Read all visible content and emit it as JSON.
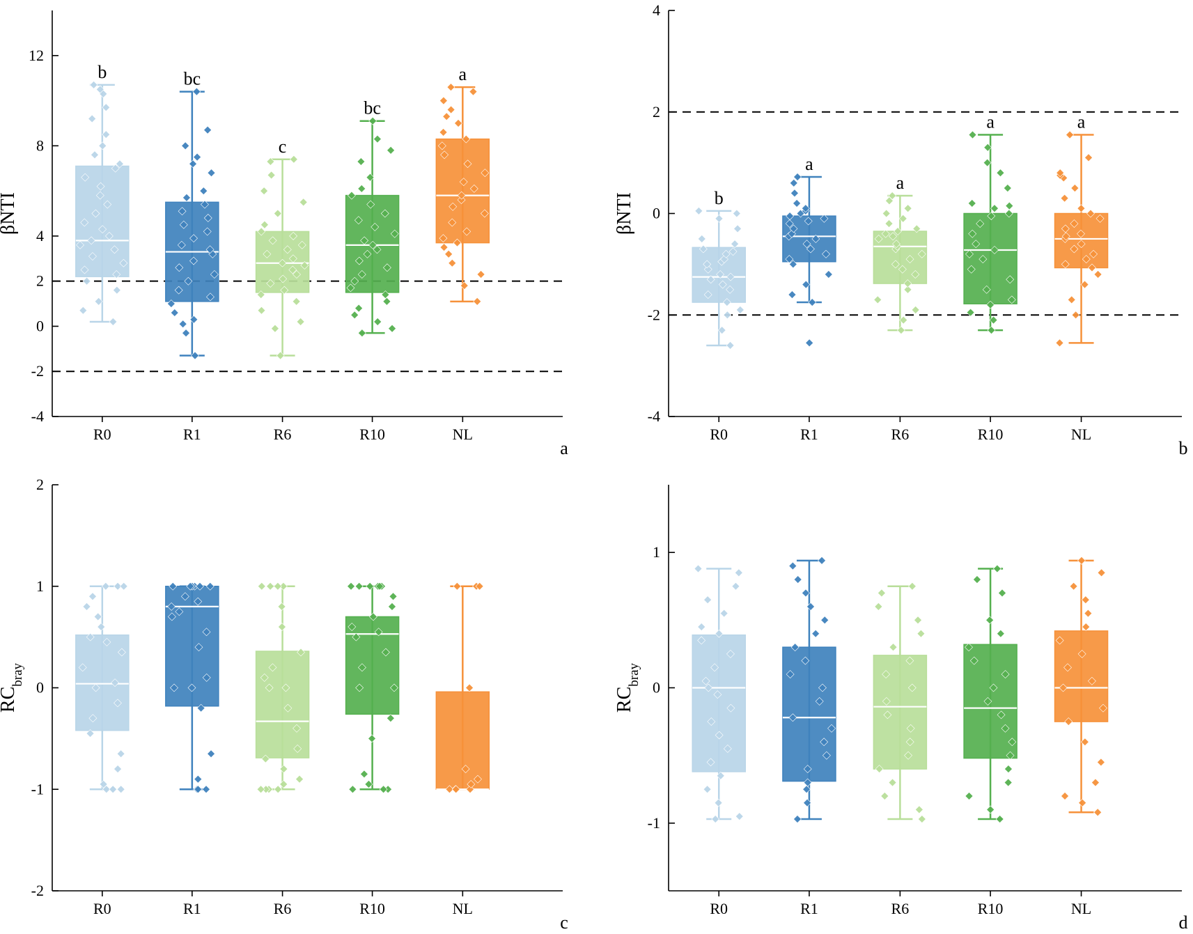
{
  "chart_data": [
    {
      "panel": "a",
      "type": "box",
      "ylabel": "βNTI",
      "ylim": [
        -4,
        14
      ],
      "yticks": [
        -4,
        -2,
        0,
        2,
        4,
        8,
        12
      ],
      "ref_lines": [
        2,
        -2
      ],
      "categories": [
        "R0",
        "R1",
        "R6",
        "R10",
        "NL"
      ],
      "colors": [
        "#b9d5e8",
        "#3f82bd",
        "#b8de9a",
        "#55b04f",
        "#f6913a"
      ],
      "boxes": [
        {
          "cat": "R0",
          "min": 0.2,
          "q1": 2.2,
          "median": 3.8,
          "q3": 7.1,
          "max": 10.7,
          "letter": "b"
        },
        {
          "cat": "R1",
          "min": -1.3,
          "q1": 1.1,
          "median": 3.3,
          "q3": 5.5,
          "max": 10.4,
          "letter": "bc"
        },
        {
          "cat": "R6",
          "min": -1.3,
          "q1": 1.5,
          "median": 2.8,
          "q3": 4.2,
          "max": 7.4,
          "letter": "c"
        },
        {
          "cat": "R10",
          "min": -0.3,
          "q1": 1.5,
          "median": 3.6,
          "q3": 5.8,
          "max": 9.1,
          "letter": "bc"
        },
        {
          "cat": "NL",
          "min": 1.1,
          "q1": 3.7,
          "median": 5.8,
          "q3": 8.3,
          "max": 10.6,
          "letter": "a"
        }
      ],
      "points": [
        [
          0.2,
          0.7,
          1.1,
          1.6,
          2.0,
          2.3,
          2.5,
          2.8,
          3.1,
          3.4,
          3.6,
          3.8,
          4.0,
          4.3,
          4.6,
          5.0,
          5.4,
          5.8,
          6.2,
          6.6,
          7.0,
          7.2,
          7.6,
          8.0,
          8.5,
          9.2,
          9.7,
          10.3,
          10.5,
          10.7
        ],
        [
          -1.3,
          -0.3,
          0.1,
          0.3,
          0.6,
          1.0,
          1.3,
          1.6,
          2.0,
          2.3,
          2.6,
          2.9,
          3.2,
          3.4,
          3.6,
          3.9,
          4.2,
          4.5,
          4.8,
          5.1,
          5.4,
          5.7,
          6.0,
          6.8,
          7.2,
          7.5,
          8.0,
          8.7,
          10.4
        ],
        [
          -1.3,
          -0.1,
          0.2,
          0.7,
          1.1,
          1.4,
          1.6,
          1.9,
          2.1,
          2.3,
          2.5,
          2.7,
          2.8,
          3.0,
          3.2,
          3.4,
          3.6,
          3.8,
          4.0,
          4.2,
          4.5,
          5.0,
          5.5,
          6.0,
          6.7,
          7.3,
          7.4
        ],
        [
          -0.3,
          -0.1,
          0.2,
          0.5,
          0.8,
          1.1,
          1.4,
          1.7,
          2.0,
          2.3,
          2.6,
          2.9,
          3.2,
          3.4,
          3.6,
          3.8,
          4.1,
          4.4,
          4.7,
          5.0,
          5.4,
          5.8,
          6.1,
          6.6,
          7.3,
          7.8,
          8.3,
          9.1
        ],
        [
          1.1,
          1.8,
          2.3,
          2.8,
          3.2,
          3.5,
          3.7,
          3.9,
          4.2,
          4.6,
          5.0,
          5.3,
          5.6,
          5.8,
          6.1,
          6.4,
          6.8,
          7.2,
          7.6,
          8.0,
          8.3,
          8.6,
          9.0,
          9.3,
          9.6,
          10.0,
          10.4,
          10.6
        ]
      ]
    },
    {
      "panel": "b",
      "type": "box",
      "ylabel": "βNTI",
      "ylim": [
        -4,
        4
      ],
      "yticks": [
        -4,
        -2,
        0,
        2,
        4
      ],
      "ref_lines": [
        2,
        -2
      ],
      "categories": [
        "R0",
        "R1",
        "R6",
        "R10",
        "NL"
      ],
      "colors": [
        "#b9d5e8",
        "#3f82bd",
        "#b8de9a",
        "#55b04f",
        "#f6913a"
      ],
      "boxes": [
        {
          "cat": "R0",
          "min": -2.6,
          "q1": -1.75,
          "median": -1.25,
          "q3": -0.67,
          "max": 0.05,
          "letter": "b"
        },
        {
          "cat": "R1",
          "min": -1.75,
          "q1": -0.95,
          "median": -0.45,
          "q3": -0.05,
          "max": 0.72,
          "letter": "a"
        },
        {
          "cat": "R6",
          "min": -2.3,
          "q1": -1.38,
          "median": -0.65,
          "q3": -0.35,
          "max": 0.35,
          "letter": "a"
        },
        {
          "cat": "R10",
          "min": -2.3,
          "q1": -1.78,
          "median": -0.72,
          "q3": 0.0,
          "max": 1.55,
          "letter": "a"
        },
        {
          "cat": "NL",
          "min": -2.55,
          "q1": -1.07,
          "median": -0.5,
          "q3": 0.0,
          "max": 1.55,
          "letter": "a"
        }
      ],
      "points": [
        [
          -2.6,
          -2.3,
          -2.0,
          -1.9,
          -1.75,
          -1.6,
          -1.5,
          -1.4,
          -1.3,
          -1.25,
          -1.2,
          -1.1,
          -1.0,
          -0.95,
          -0.9,
          -0.8,
          -0.75,
          -0.7,
          -0.6,
          -0.5,
          -0.3,
          -0.1,
          0.0,
          0.05
        ],
        [
          -2.55,
          -1.75,
          -1.6,
          -1.4,
          -1.2,
          -1.0,
          -0.9,
          -0.8,
          -0.7,
          -0.6,
          -0.5,
          -0.45,
          -0.4,
          -0.3,
          -0.2,
          -0.15,
          -0.1,
          -0.05,
          0.0,
          0.05,
          0.1,
          0.2,
          0.4,
          0.6,
          0.72
        ],
        [
          -2.3,
          -2.1,
          -1.9,
          -1.7,
          -1.5,
          -1.38,
          -1.2,
          -1.1,
          -1.0,
          -0.9,
          -0.8,
          -0.7,
          -0.65,
          -0.6,
          -0.5,
          -0.45,
          -0.4,
          -0.35,
          -0.3,
          -0.2,
          -0.1,
          0.0,
          0.1,
          0.25,
          0.35
        ],
        [
          -2.3,
          -2.1,
          -1.95,
          -1.8,
          -1.7,
          -1.5,
          -1.3,
          -1.1,
          -0.9,
          -0.8,
          -0.72,
          -0.6,
          -0.4,
          -0.2,
          -0.05,
          0.0,
          0.1,
          0.15,
          0.2,
          0.5,
          0.8,
          1.0,
          1.3,
          1.55
        ],
        [
          -2.55,
          -2.0,
          -1.7,
          -1.4,
          -1.2,
          -1.07,
          -1.0,
          -0.9,
          -0.8,
          -0.7,
          -0.6,
          -0.5,
          -0.45,
          -0.4,
          -0.3,
          -0.2,
          -0.1,
          0.0,
          0.1,
          0.3,
          0.5,
          0.7,
          0.75,
          0.8,
          1.1,
          1.55
        ]
      ]
    },
    {
      "panel": "c",
      "type": "box",
      "ylabel": "RC",
      "ylabel_sub": "bray",
      "ylim": [
        -2,
        2
      ],
      "yticks": [
        -2,
        -1,
        0,
        1,
        2
      ],
      "ref_lines": [],
      "categories": [
        "R0",
        "R1",
        "R6",
        "R10",
        "NL"
      ],
      "colors": [
        "#b9d5e8",
        "#3f82bd",
        "#b8de9a",
        "#55b04f",
        "#f6913a"
      ],
      "boxes": [
        {
          "cat": "R0",
          "min": -1.0,
          "q1": -0.42,
          "median": 0.04,
          "q3": 0.52,
          "max": 1.0
        },
        {
          "cat": "R1",
          "min": -1.0,
          "q1": -0.18,
          "median": 0.8,
          "q3": 1.0,
          "max": 1.0
        },
        {
          "cat": "R6",
          "min": -1.0,
          "q1": -0.69,
          "median": -0.33,
          "q3": 0.36,
          "max": 1.0
        },
        {
          "cat": "R10",
          "min": -1.0,
          "q1": -0.26,
          "median": 0.53,
          "q3": 0.7,
          "max": 1.0
        },
        {
          "cat": "NL",
          "min": -1.0,
          "q1": -1.0,
          "median": -1.0,
          "q3": -0.04,
          "max": 1.0
        }
      ],
      "points": [
        [
          -1.0,
          -1.0,
          -1.0,
          -1.0,
          -0.95,
          -0.8,
          -0.65,
          -0.45,
          -0.3,
          -0.15,
          0.0,
          0.05,
          0.2,
          0.35,
          0.45,
          0.5,
          0.6,
          0.7,
          0.8,
          0.9,
          1.0,
          1.0,
          1.0,
          1.0
        ],
        [
          -1.0,
          -1.0,
          -1.0,
          -0.9,
          -0.65,
          -0.2,
          0.0,
          0.0,
          0.1,
          0.4,
          0.55,
          0.7,
          0.75,
          0.8,
          0.85,
          0.9,
          1.0,
          1.0,
          1.0,
          1.0,
          1.0,
          1.0
        ],
        [
          -1.0,
          -1.0,
          -1.0,
          -1.0,
          -0.95,
          -0.9,
          -0.8,
          -0.7,
          -0.6,
          -0.4,
          -0.2,
          0.0,
          0.0,
          0.1,
          0.2,
          0.35,
          0.6,
          0.8,
          1.0,
          1.0,
          1.0,
          1.0
        ],
        [
          -1.0,
          -1.0,
          -1.0,
          -0.95,
          -0.85,
          -0.5,
          -0.3,
          0.0,
          0.0,
          0.2,
          0.35,
          0.5,
          0.55,
          0.6,
          0.7,
          0.8,
          0.9,
          1.0,
          1.0,
          1.0,
          1.0,
          1.0,
          1.0
        ],
        [
          -1.0,
          -1.0,
          -1.0,
          -1.0,
          -0.95,
          -0.9,
          -0.8,
          0.0,
          1.0,
          1.0,
          1.0
        ]
      ]
    },
    {
      "panel": "d",
      "type": "box",
      "ylabel": "RC",
      "ylabel_sub": "bray",
      "ylim": [
        -1.5,
        1.5
      ],
      "yticks": [
        -1,
        0,
        1
      ],
      "ref_lines": [],
      "categories": [
        "R0",
        "R1",
        "R6",
        "R10",
        "NL"
      ],
      "colors": [
        "#b9d5e8",
        "#3f82bd",
        "#b8de9a",
        "#55b04f",
        "#f6913a"
      ],
      "boxes": [
        {
          "cat": "R0",
          "min": -0.97,
          "q1": -0.62,
          "median": 0.0,
          "q3": 0.39,
          "max": 0.88
        },
        {
          "cat": "R1",
          "min": -0.97,
          "q1": -0.69,
          "median": -0.22,
          "q3": 0.3,
          "max": 0.94
        },
        {
          "cat": "R6",
          "min": -0.97,
          "q1": -0.6,
          "median": -0.14,
          "q3": 0.24,
          "max": 0.75
        },
        {
          "cat": "R10",
          "min": -0.97,
          "q1": -0.52,
          "median": -0.15,
          "q3": 0.32,
          "max": 0.88
        },
        {
          "cat": "NL",
          "min": -0.92,
          "q1": -0.25,
          "median": 0.0,
          "q3": 0.42,
          "max": 0.94
        }
      ],
      "points": [
        [
          -0.97,
          -0.95,
          -0.85,
          -0.75,
          -0.65,
          -0.55,
          -0.45,
          -0.35,
          -0.25,
          -0.15,
          -0.05,
          0.0,
          0.05,
          0.15,
          0.25,
          0.35,
          0.4,
          0.45,
          0.55,
          0.65,
          0.75,
          0.85,
          0.88
        ],
        [
          -0.97,
          -0.85,
          -0.75,
          -0.7,
          -0.6,
          -0.5,
          -0.4,
          -0.3,
          -0.22,
          -0.1,
          0.0,
          0.1,
          0.2,
          0.3,
          0.4,
          0.5,
          0.6,
          0.7,
          0.8,
          0.9,
          0.94
        ],
        [
          -0.97,
          -0.9,
          -0.8,
          -0.7,
          -0.6,
          -0.5,
          -0.4,
          -0.3,
          -0.2,
          -0.1,
          0.0,
          0.1,
          0.2,
          0.3,
          0.4,
          0.5,
          0.6,
          0.7,
          0.75
        ],
        [
          -0.97,
          -0.9,
          -0.8,
          -0.7,
          -0.6,
          -0.5,
          -0.4,
          -0.3,
          -0.2,
          -0.1,
          0.0,
          0.1,
          0.2,
          0.3,
          0.4,
          0.5,
          0.7,
          0.8,
          0.88
        ],
        [
          -0.92,
          -0.85,
          -0.8,
          -0.7,
          -0.55,
          -0.4,
          -0.25,
          -0.15,
          0.0,
          0.05,
          0.15,
          0.25,
          0.35,
          0.45,
          0.55,
          0.65,
          0.75,
          0.85,
          0.94
        ]
      ]
    }
  ]
}
